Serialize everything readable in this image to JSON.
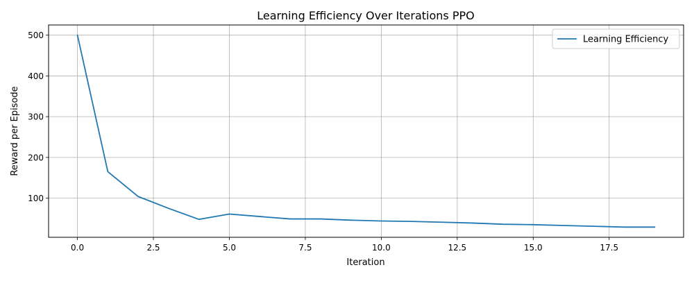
{
  "chart_data": {
    "type": "line",
    "title": "Learning Efficiency Over Iterations PPO",
    "xlabel": "Iteration",
    "ylabel": "Reward per Episode",
    "xlim": [
      -0.95,
      19.95
    ],
    "ylim": [
      4,
      525
    ],
    "xticks": [
      0.0,
      2.5,
      5.0,
      7.5,
      10.0,
      12.5,
      15.0,
      17.5
    ],
    "xtick_labels": [
      "0.0",
      "2.5",
      "5.0",
      "7.5",
      "10.0",
      "12.5",
      "15.0",
      "17.5"
    ],
    "yticks": [
      100,
      200,
      300,
      400,
      500
    ],
    "ytick_labels": [
      "100",
      "200",
      "300",
      "400",
      "500"
    ],
    "grid": true,
    "legend_position": "upper right",
    "series": [
      {
        "name": "Learning Efficiency",
        "color": "#1f77b4",
        "x": [
          0,
          1,
          2,
          3,
          4,
          5,
          6,
          7,
          8,
          9,
          10,
          11,
          12,
          13,
          14,
          15,
          16,
          17,
          18,
          19
        ],
        "values": [
          500,
          165,
          104,
          75,
          48,
          61,
          55,
          49,
          49,
          46,
          44,
          43,
          41,
          39,
          36,
          35,
          33,
          31,
          29,
          29
        ]
      }
    ]
  }
}
